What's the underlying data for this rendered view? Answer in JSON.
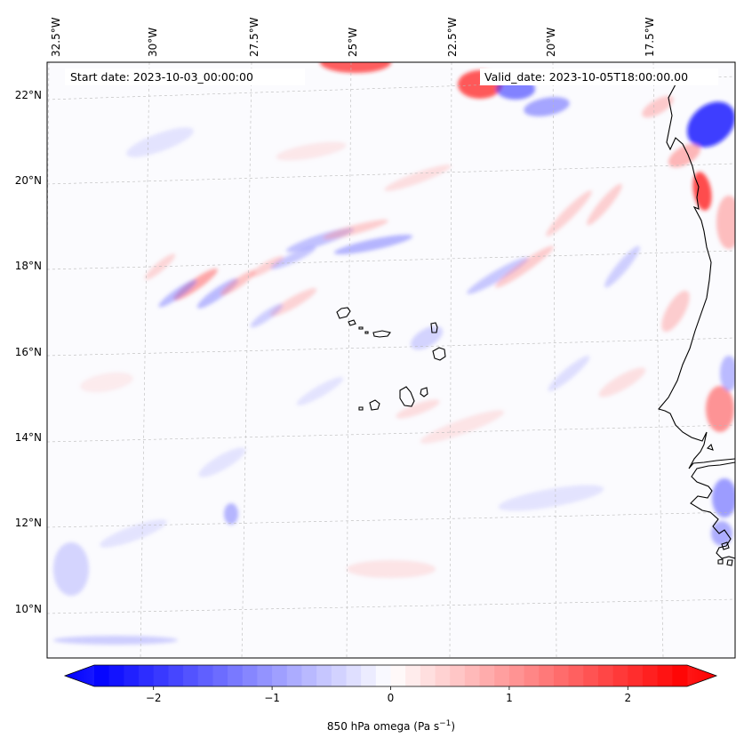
{
  "header": {
    "start_date": "Start date: 2023-10-03_00:00:00",
    "valid_date": "Valid_date: 2023-10-05T18:00:00.00"
  },
  "map": {
    "longitude_labels": [
      "32.5°W",
      "30°W",
      "27.5°W",
      "25°W",
      "22.5°W",
      "20°W",
      "17.5°W"
    ],
    "latitude_labels": [
      "22°N",
      "20°N",
      "18°N",
      "16°N",
      "14°N",
      "12°N",
      "10°N"
    ],
    "field": "850 hPa omega",
    "region": "Cabo Verde islands and West African coast"
  },
  "colorbar": {
    "title_main": "850 hPa omega (Pa s",
    "title_exp": "−1",
    "title_close": ")",
    "tick_labels": [
      "−2",
      "−1",
      "0",
      "1",
      "2"
    ],
    "tick_values": [
      -2,
      -1,
      0,
      1,
      2
    ],
    "min": -2.5,
    "max": 2.5,
    "colormap": "bwr",
    "low_color": "#0000ff",
    "mid_color": "#ffffff",
    "high_color": "#ff0000"
  }
}
